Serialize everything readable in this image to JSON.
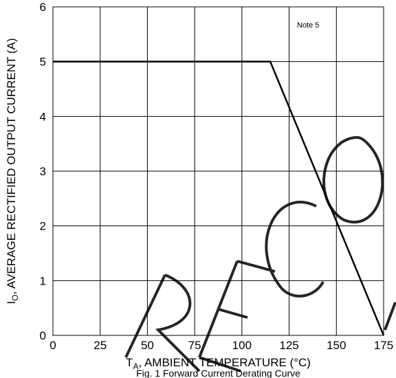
{
  "chart_data": {
    "type": "line",
    "x_ticks": [
      "0",
      "25",
      "50",
      "75",
      "100",
      "125",
      "150",
      "175"
    ],
    "y_ticks": [
      "0",
      "1",
      "2",
      "3",
      "4",
      "5",
      "6"
    ],
    "xlim": [
      0,
      175
    ],
    "ylim": [
      0,
      6
    ],
    "grid": true,
    "xlabel": {
      "main": "T",
      "sub": "A",
      "rest": ", AMBIENT TEMPERATURE (°C)"
    },
    "ylabel": {
      "main": "I",
      "sub": "O",
      "rest": ", AVERAGE RECTIFIED OUTPUT CURRENT (A)"
    },
    "annotation": "Note 5",
    "caption": "Fig. 1  Forward Current Derating Curve",
    "series": [
      {
        "x": [
          0,
          115,
          175
        ],
        "values": [
          5,
          5,
          0
        ]
      }
    ],
    "watermark": "RECOMMENDED"
  }
}
